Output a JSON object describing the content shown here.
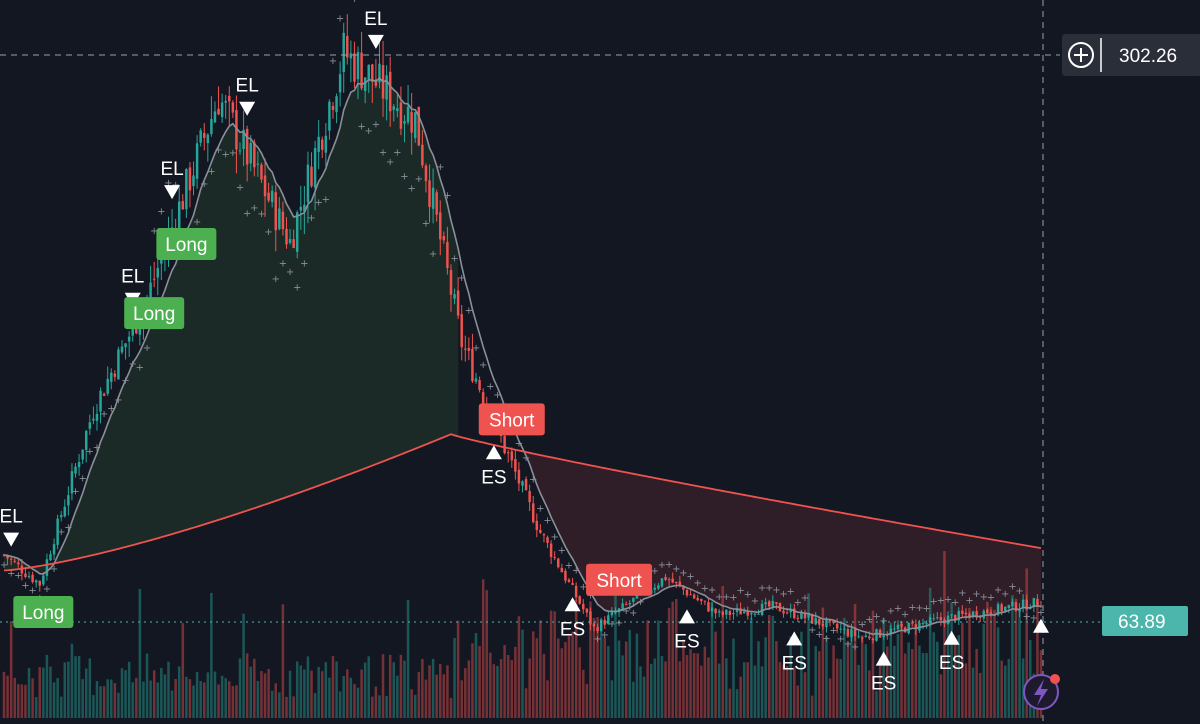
{
  "colors": {
    "background": "#131722",
    "up": "#26a69a",
    "down": "#ef5350",
    "sma_line": "#ef5350",
    "long_fill": "#1b2a26",
    "short_fill": "#2f1e27",
    "long_tag": "#4caf50",
    "short_tag": "#ef5350",
    "last_price_tag": "#4db6ac",
    "sar": "#8a8f9a"
  },
  "top_toolbar": {
    "buttons": [
      "",
      "",
      "",
      ""
    ]
  },
  "crosshair": {
    "price_label": "302.26",
    "plus_icon": "plus-circle-icon"
  },
  "last_price": {
    "label": "63.89"
  },
  "chart_data": {
    "type": "candlestick",
    "title": "",
    "xlabel": "",
    "ylabel": "",
    "ylim": [
      20,
      320
    ],
    "grid": false,
    "approx_close_path": [
      {
        "bar": 0,
        "close": 85
      },
      {
        "bar": 10,
        "close": 72
      },
      {
        "bar": 25,
        "close": 150
      },
      {
        "bar": 40,
        "close": 200
      },
      {
        "bar": 60,
        "close": 290
      },
      {
        "bar": 80,
        "close": 225
      },
      {
        "bar": 95,
        "close": 310
      },
      {
        "bar": 115,
        "close": 280
      },
      {
        "bar": 128,
        "close": 180
      },
      {
        "bar": 140,
        "close": 133
      },
      {
        "bar": 150,
        "close": 95
      },
      {
        "bar": 165,
        "close": 52
      },
      {
        "bar": 185,
        "close": 75
      },
      {
        "bar": 200,
        "close": 58
      },
      {
        "bar": 215,
        "close": 62
      },
      {
        "bar": 240,
        "close": 48
      },
      {
        "bar": 265,
        "close": 57
      },
      {
        "bar": 290,
        "close": 64
      }
    ],
    "signals": [
      {
        "label": "EL",
        "marker": "down-triangle",
        "bar": 2
      },
      {
        "label": "EL",
        "marker": "down-triangle",
        "bar": 36
      },
      {
        "label": "EL",
        "marker": "down-triangle",
        "bar": 47
      },
      {
        "label": "EL",
        "marker": "down-triangle",
        "bar": 68
      },
      {
        "label": "EL",
        "marker": "down-triangle",
        "bar": 104
      },
      {
        "label": "ES",
        "marker": "up-triangle",
        "bar": 137
      },
      {
        "label": "ES",
        "marker": "up-triangle",
        "bar": 159
      },
      {
        "label": "ES",
        "marker": "up-triangle",
        "bar": 191
      },
      {
        "label": "ES",
        "marker": "up-triangle",
        "bar": 221
      },
      {
        "label": "ES",
        "marker": "up-triangle",
        "bar": 246
      },
      {
        "label": "ES",
        "marker": "up-triangle",
        "bar": 265
      },
      {
        "label": "",
        "marker": "up-triangle",
        "bar": 290
      }
    ],
    "tags": [
      {
        "label": "Long",
        "kind": "long",
        "bar": 11
      },
      {
        "label": "Long",
        "kind": "long",
        "bar": 42
      },
      {
        "label": "Long",
        "kind": "long",
        "bar": 51
      },
      {
        "label": "Short",
        "kind": "short",
        "bar": 142
      },
      {
        "label": "Short",
        "kind": "short",
        "bar": 172
      }
    ]
  }
}
